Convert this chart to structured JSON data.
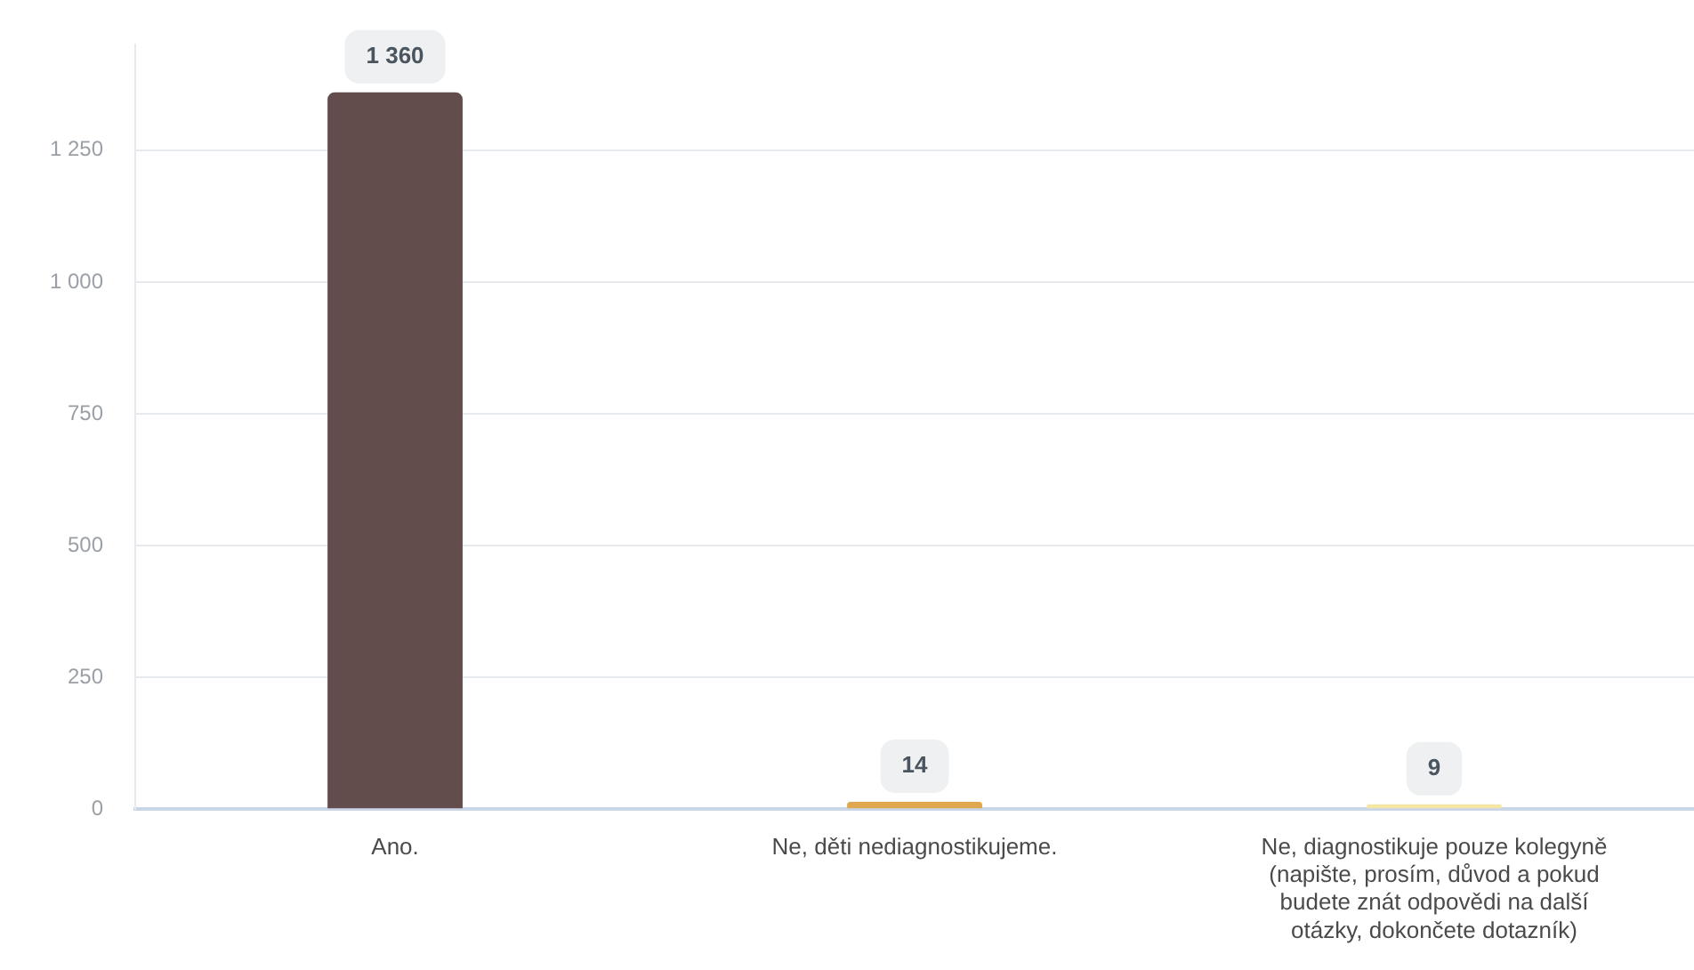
{
  "chart_data": {
    "type": "bar",
    "categories": [
      "Ano.",
      "Ne, děti nediagnostikujeme.",
      "Ne, diagnostikuje pouze kolegyně (napište, prosím, důvod a pokud budete znát odpovědi na další otázky, dokončete dotazník)"
    ],
    "values": [
      1360,
      14,
      9
    ],
    "colors": [
      "#624c4c",
      "#e0a84e",
      "#f6e6a6"
    ],
    "value_labels": [
      "1 360",
      "14",
      "9"
    ],
    "ylim": [
      0,
      1450
    ],
    "yticks": [
      {
        "value": 0,
        "label": "0"
      },
      {
        "value": 250,
        "label": "250"
      },
      {
        "value": 500,
        "label": "500"
      },
      {
        "value": 750,
        "label": "750"
      },
      {
        "value": 1000,
        "label": "1 000"
      },
      {
        "value": 1250,
        "label": "1 250"
      }
    ],
    "grid": "y",
    "legend": false
  }
}
